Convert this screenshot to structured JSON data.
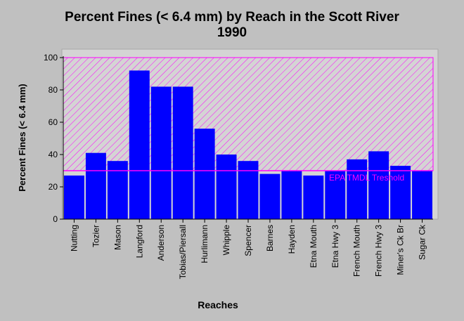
{
  "chart_data": {
    "type": "bar",
    "title": [
      "Percent Fines (< 6.4 mm) by Reach in the Scott River",
      "1990"
    ],
    "xlabel": "Reaches",
    "ylabel": "Percent Fines (< 6.4 mm)",
    "ylim": [
      0,
      100
    ],
    "yticks": [
      0,
      20,
      40,
      60,
      80,
      100
    ],
    "grid": false,
    "bar_color": "#0000ff",
    "categories": [
      "Nutting",
      "Tozier",
      "Mason",
      "Langford",
      "Anderson",
      "Tobias/Piersall",
      "Hurlimann",
      "Whipple",
      "Spencer",
      "Barnes",
      "Hayden",
      "Etna Mouth",
      "Etna Hwy 3",
      "French Mouth",
      "French  Hwy 3",
      "Miner's Ck Br",
      "Sugar Ck"
    ],
    "values": [
      27,
      41,
      36,
      92,
      82,
      82,
      56,
      40,
      36,
      28,
      30,
      27,
      30,
      37,
      42,
      33,
      30
    ],
    "threshold": {
      "label": "EPA TMDL Treshold",
      "value": 30,
      "shaded_range": [
        30,
        100
      ],
      "color": "#ff00ff"
    }
  }
}
